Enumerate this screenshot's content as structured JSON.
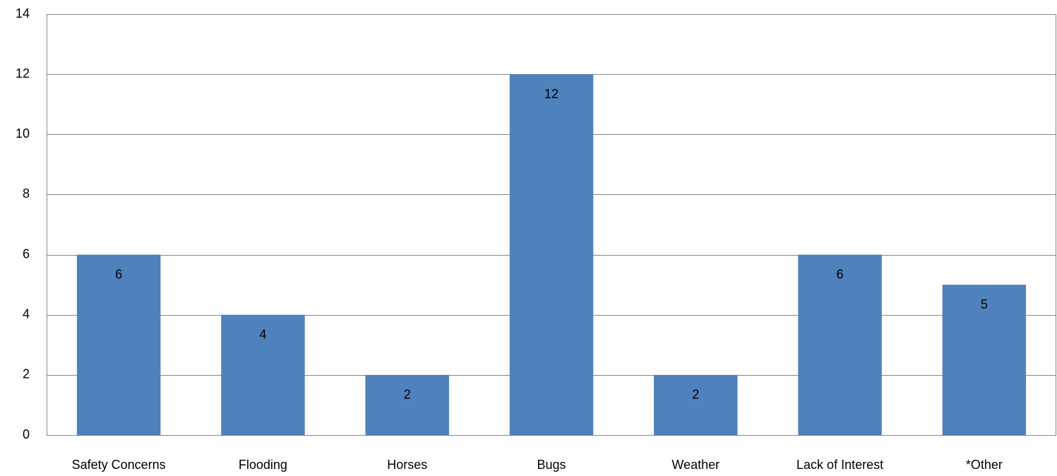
{
  "chart_data": {
    "type": "bar",
    "categories": [
      "Safety Concerns",
      "Flooding",
      "Horses",
      "Bugs",
      "Weather",
      "Lack of Interest",
      "*Other"
    ],
    "values": [
      6,
      4,
      2,
      12,
      2,
      6,
      5
    ],
    "color": "#4f81bd",
    "ylim": [
      0,
      14
    ],
    "yticks": [
      0,
      2,
      4,
      6,
      8,
      10,
      12,
      14
    ],
    "grid": true
  }
}
